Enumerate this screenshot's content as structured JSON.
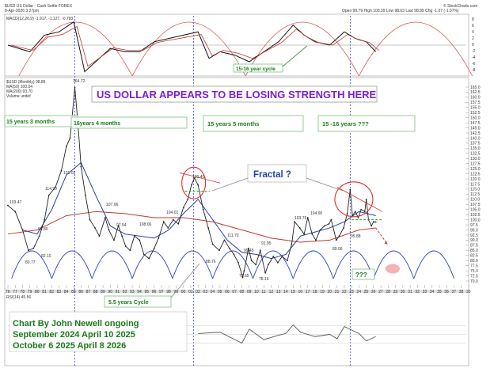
{
  "header": {
    "symbol_line": "$USD US Dollar - Cash Settle FOREX",
    "date_line": "8-Apr-2026 3:27pm",
    "brand": "© StockCharts.com",
    "quote": "Open 99.79  High 100.39  Low 98.63  Last 98.89  Chg -1.07 (-1.07%)"
  },
  "macd_panel": {
    "legend": "MACD(12,26,9) -1.917, -1.127, -0.793",
    "cycle_label": "15-16 year cycle",
    "scale_labels": [
      "8",
      "6",
      "4",
      "2",
      "0",
      "-2",
      "-4",
      "-6",
      "-8"
    ]
  },
  "main_panel": {
    "legend_lines": [
      "$USD (Monthly) 98.89",
      "MA(50) 100.04",
      "MA(200) 93.70",
      "Volume undef"
    ],
    "title": "US DOLLAR APPEARS TO BE LOSING STRENGTH HERE",
    "boxes": [
      "15 years 3 months",
      "16years 4 months",
      "15 years 5 months",
      "15 -16 years ???"
    ],
    "fractal_label": "Fractal ?",
    "cycle_label": "5.5 years Cycle",
    "question_label": "???",
    "credit_lines": [
      "Chart By John Newell ongoing",
      "September 2024 April 10 2025",
      "October 6 2025 April 8 2026"
    ],
    "price_labels": [
      "164.72",
      "114.90",
      "103.47",
      "121.02",
      "107.06",
      "94.80",
      "80.77",
      "82.10",
      "104.01",
      "108.06",
      "97.54",
      "103.76",
      "99.45",
      "91.95",
      "72.65",
      "111.70",
      "120.40",
      "104.90",
      "95.88",
      "89.06",
      "78.16",
      "88.76"
    ]
  },
  "rsi_panel": {
    "legend": "RSI(14) 45.56"
  },
  "chart_data": {
    "type": "line",
    "title": "US DOLLAR APPEARS TO BE LOSING STRENGTH HERE",
    "series_name": "$USD (Monthly)",
    "x_tick_labels": [
      "76",
      "77",
      "78",
      "79",
      "80",
      "81",
      "82",
      "83",
      "84",
      "85",
      "86",
      "87",
      "88",
      "89",
      "90",
      "91",
      "92",
      "93",
      "94",
      "95",
      "96",
      "97",
      "98",
      "99",
      "00",
      "01",
      "02",
      "03",
      "04",
      "05",
      "06",
      "07",
      "08",
      "09",
      "10",
      "11",
      "12",
      "13",
      "14",
      "15",
      "16",
      "17",
      "18",
      "19",
      "20",
      "21",
      "22",
      "23",
      "24",
      "25",
      "26",
      "27",
      "28",
      "29",
      "30",
      "31",
      "32",
      "33",
      "34",
      "35",
      "36",
      "37",
      "38",
      "39"
    ],
    "y_tick_labels": [
      "165.0",
      "162.5",
      "160.0",
      "157.5",
      "155.0",
      "152.5",
      "150.0",
      "147.5",
      "145.0",
      "142.5",
      "140.0",
      "137.5",
      "135.0",
      "132.5",
      "130.0",
      "127.5",
      "125.0",
      "122.5",
      "120.0",
      "117.5",
      "115.0",
      "112.5",
      "110.0",
      "107.5",
      "105.0",
      "102.5",
      "100.0",
      "97.5",
      "95.0",
      "92.5",
      "90.0",
      "87.5",
      "85.0",
      "82.5",
      "80.0",
      "77.5",
      "75.0",
      "72.5",
      "70.0"
    ],
    "ylim": [
      70,
      165
    ],
    "xlim": [
      1976,
      2039
    ],
    "price": {
      "x": [
        1976.0,
        1977.0,
        1978.0,
        1978.8,
        1979.5,
        1980.3,
        1981.0,
        1981.6,
        1982.5,
        1983.3,
        1984.0,
        1984.5,
        1985.15,
        1985.6,
        1986.0,
        1986.6,
        1987.2,
        1987.9,
        1988.5,
        1989.3,
        1989.8,
        1990.5,
        1991.1,
        1991.6,
        1992.1,
        1992.7,
        1993.3,
        1994.0,
        1994.6,
        1995.3,
        1996.0,
        1996.6,
        1997.3,
        1997.9,
        1998.6,
        1999.3,
        2000.0,
        2000.6,
        2001.1,
        2001.5,
        2002.0,
        2002.7,
        2003.4,
        2004.0,
        2004.9,
        2005.6,
        2006.3,
        2006.9,
        2007.5,
        2008.1,
        2008.3,
        2008.9,
        2009.3,
        2009.9,
        2010.5,
        2011.2,
        2011.6,
        2012.3,
        2012.9,
        2013.5,
        2014.2,
        2014.8,
        2015.2,
        2015.9,
        2016.5,
        2017.0,
        2017.6,
        2018.1,
        2018.7,
        2019.3,
        2019.9,
        2020.2,
        2020.9,
        2021.3,
        2021.9,
        2022.4,
        2022.8,
        2023.1,
        2023.5,
        2023.9,
        2024.3,
        2024.8,
        2025.0,
        2025.3,
        2025.7,
        2026.0,
        2026.3
      ],
      "y": [
        107.0,
        104.0,
        95.0,
        85.0,
        86.0,
        92.0,
        100.0,
        112.0,
        116.0,
        124.0,
        136.0,
        140.0,
        164.72,
        146.0,
        126.0,
        112.0,
        100.0,
        96.0,
        92.0,
        101.0,
        95.0,
        90.0,
        97.0,
        92.0,
        87.0,
        85.0,
        92.0,
        90.0,
        83.0,
        81.0,
        86.0,
        91.0,
        99.0,
        96.0,
        100.0,
        98.0,
        106.0,
        110.0,
        117.0,
        120.4,
        117.0,
        105.0,
        96.0,
        88.0,
        85.0,
        90.0,
        86.0,
        83.0,
        79.0,
        71.8,
        75.0,
        86.0,
        80.0,
        78.0,
        85.0,
        74.0,
        78.0,
        82.0,
        79.0,
        82.0,
        80.0,
        88.0,
        99.0,
        96.0,
        93.0,
        101.0,
        93.0,
        90.0,
        95.0,
        97.0,
        98.0,
        100.0,
        90.0,
        92.0,
        96.0,
        103.0,
        114.8,
        102.0,
        104.0,
        101.0,
        105.0,
        104.0,
        110.0,
        100.0,
        97.0,
        99.0,
        98.89
      ]
    },
    "ma_slow": {
      "x": [
        1976,
        1980,
        1984,
        1988,
        1992,
        1996,
        2000,
        2004,
        2008,
        2012,
        2016,
        2020,
        2024,
        2026.3
      ],
      "y": [
        93,
        95,
        102,
        104,
        103,
        101,
        101,
        99,
        95,
        91,
        89,
        90,
        95,
        96
      ]
    },
    "ma_fast": {
      "x": [
        1978,
        1980,
        1982,
        1984,
        1986,
        1988,
        1990,
        1992,
        1994,
        1996,
        1998,
        2000,
        2002,
        2004,
        2006,
        2008,
        2010,
        2012,
        2014,
        2016,
        2018,
        2020,
        2022,
        2024,
        2026.3
      ],
      "y": [
        95,
        93,
        105,
        122,
        128,
        112,
        97,
        93,
        92,
        91,
        95,
        103,
        110,
        100,
        90,
        84,
        83,
        81,
        83,
        92,
        94,
        96,
        99,
        104,
        102
      ]
    },
    "projection_x": [
      2026.3,
      2027.9
    ],
    "projection_y": [
      96,
      88
    ],
    "cycle_bottoms": [
      1976.5,
      1982.0,
      1987.5,
      1993.0,
      1998.5,
      2004.0,
      2009.5,
      2015.0,
      2020.5,
      2026.0,
      2031.5,
      2037.0
    ],
    "long_cycle_bottoms": [
      1977.5,
      1993.0,
      2008.5,
      2024.0,
      2039.5
    ],
    "cycle_lows": [
      1985.15,
      2001.4,
      2022.8
    ],
    "macd_x": [
      1976,
      1979,
      1981,
      1983,
      1985,
      1986.5,
      1988,
      1990,
      1992,
      1994,
      1996,
      1998,
      2000,
      2002,
      2003.5,
      2005,
      2007,
      2009,
      2011,
      2013,
      2015,
      2016.5,
      2018,
      2020,
      2022,
      2023.5,
      2025,
      2026.3
    ],
    "macd_y": [
      0,
      -2,
      3,
      4,
      7,
      -8,
      -5,
      -1,
      -2,
      -2,
      1,
      2,
      3,
      4,
      -4,
      -2,
      -3,
      -5,
      -2,
      1,
      6,
      3,
      1,
      0,
      4,
      2,
      1,
      -2
    ],
    "rsi_x": [
      2002,
      2005,
      2008,
      2009,
      2011,
      2013,
      2014,
      2015,
      2016,
      2018,
      2020,
      2021,
      2022,
      2024,
      2025,
      2026.3
    ],
    "rsi_y": [
      52,
      55,
      30,
      62,
      38,
      48,
      52,
      72,
      55,
      45,
      50,
      40,
      68,
      52,
      35,
      45
    ]
  }
}
